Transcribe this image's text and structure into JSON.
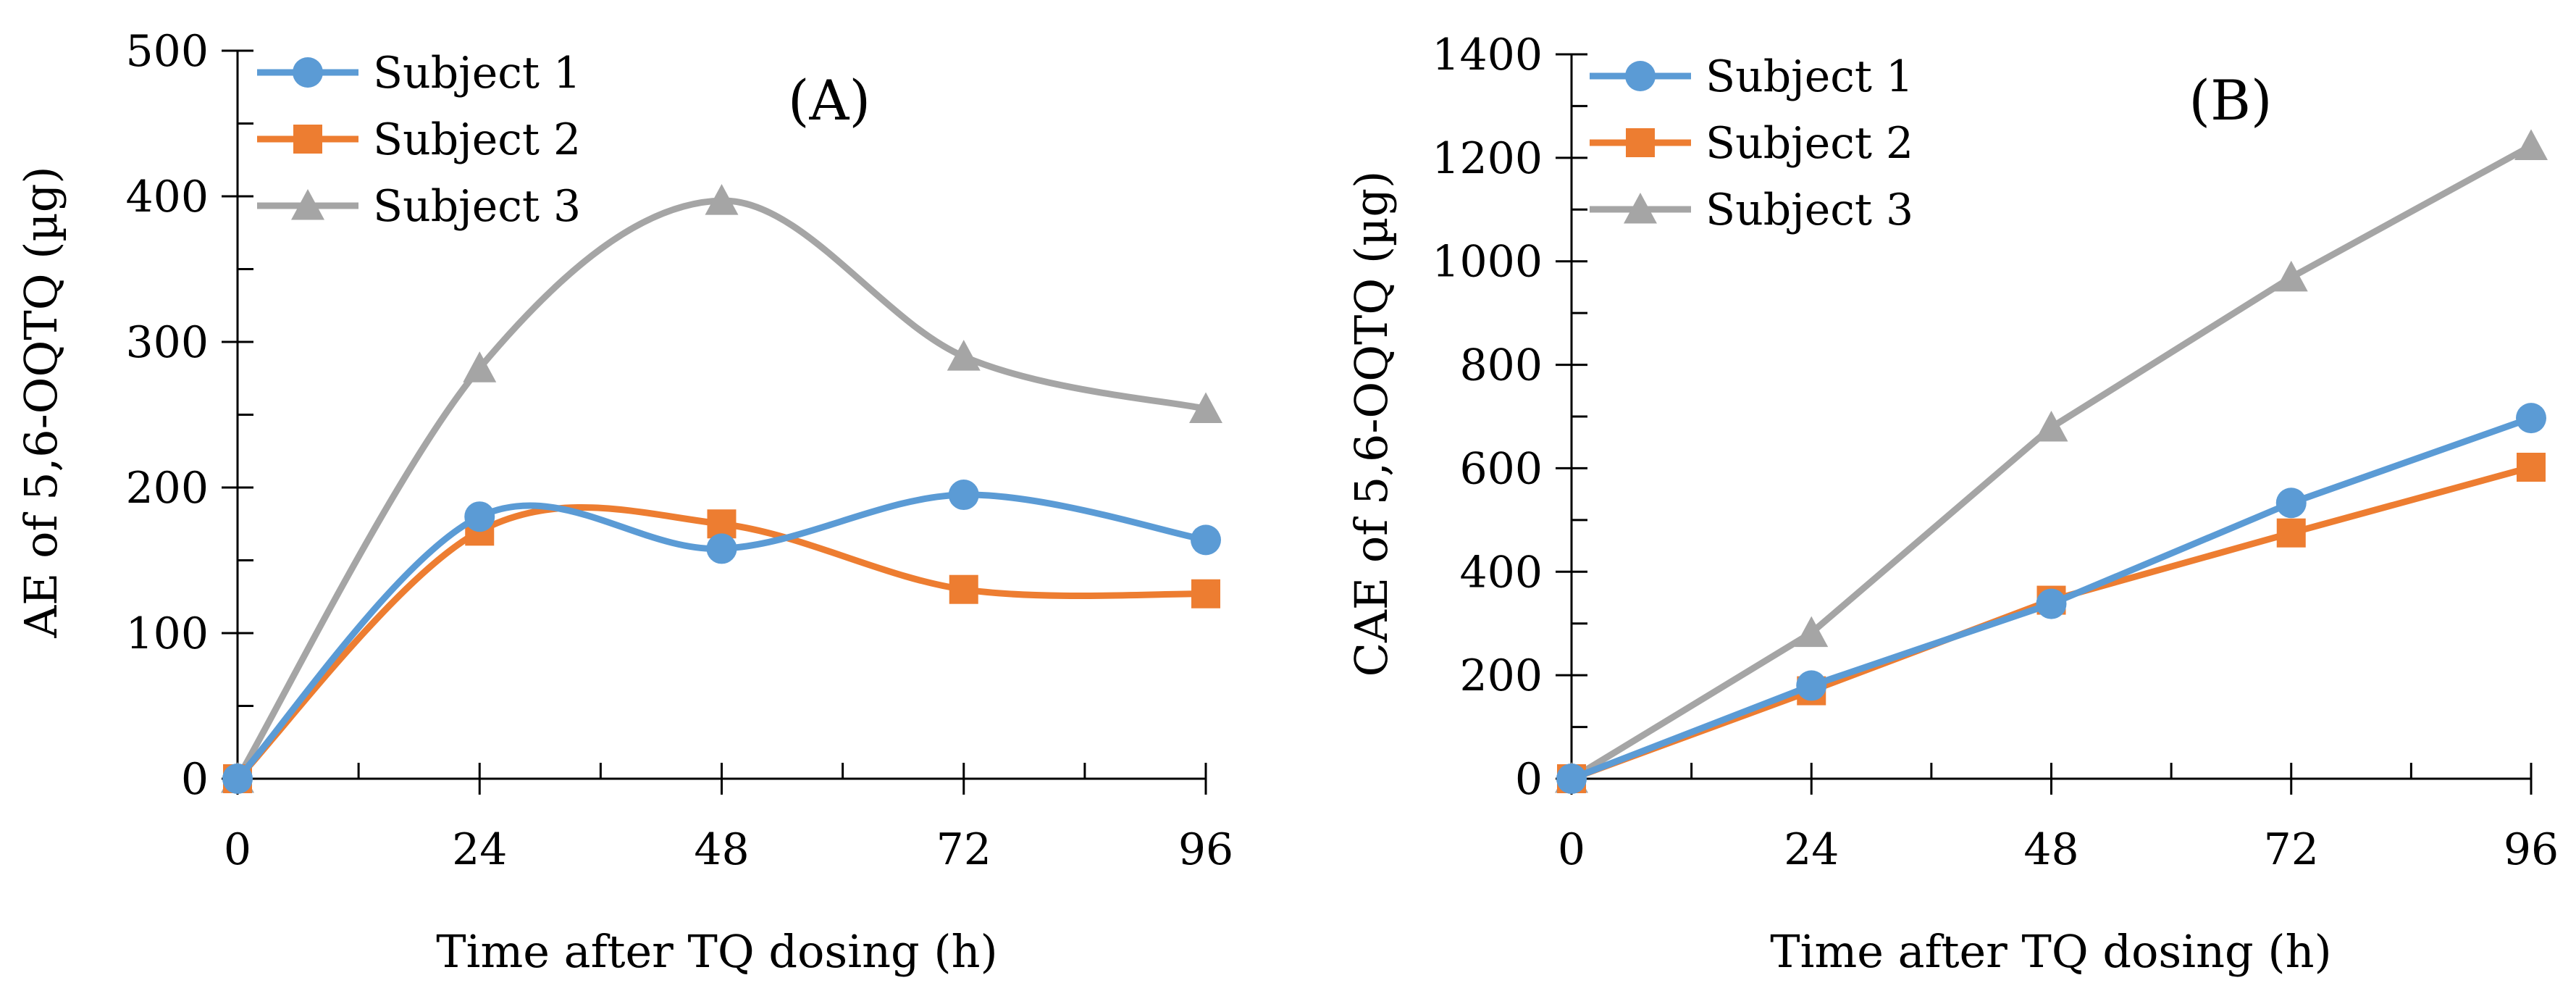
{
  "chart_data": [
    {
      "type": "line",
      "panel_label": "(A)",
      "title": "(A)",
      "xlabel": "Time after TQ dosing (h)",
      "ylabel": "AE of 5,6-OQTQ (µg)",
      "x": [
        0,
        24,
        48,
        72,
        96
      ],
      "xticks": [
        "0",
        "24",
        "48",
        "72",
        "96"
      ],
      "xlim": [
        0,
        96
      ],
      "ylim": [
        0,
        500
      ],
      "yticks": [
        "0",
        "100",
        "200",
        "300",
        "400",
        "500"
      ],
      "smooth": true,
      "grid": false,
      "legend_position": "top-left",
      "series": [
        {
          "name": "Subject 1",
          "color": "#5B9BD5",
          "marker": "circle",
          "values": [
            0,
            180,
            158,
            195,
            164
          ]
        },
        {
          "name": "Subject 2",
          "color": "#ED7D31",
          "marker": "square",
          "values": [
            0,
            170,
            175,
            130,
            127
          ]
        },
        {
          "name": "Subject 3",
          "color": "#A5A5A5",
          "marker": "triangle",
          "values": [
            0,
            282,
            397,
            290,
            254
          ]
        }
      ]
    },
    {
      "type": "line",
      "panel_label": "(B)",
      "title": "(B)",
      "xlabel": "Time after TQ dosing (h)",
      "ylabel": "CAE of 5,6-OQTQ (µg)",
      "x": [
        0,
        24,
        48,
        72,
        96
      ],
      "xticks": [
        "0",
        "24",
        "48",
        "72",
        "96"
      ],
      "xlim": [
        0,
        96
      ],
      "ylim": [
        0,
        1400
      ],
      "yticks": [
        "0",
        "200",
        "400",
        "600",
        "800",
        "1000",
        "1200",
        "1400"
      ],
      "smooth": false,
      "grid": false,
      "legend_position": "top-left",
      "series": [
        {
          "name": "Subject 1",
          "color": "#5B9BD5",
          "marker": "circle",
          "values": [
            0,
            180,
            338,
            533,
            697
          ]
        },
        {
          "name": "Subject 2",
          "color": "#ED7D31",
          "marker": "square",
          "values": [
            0,
            170,
            345,
            475,
            602
          ]
        },
        {
          "name": "Subject 3",
          "color": "#A5A5A5",
          "marker": "triangle",
          "values": [
            0,
            282,
            679,
            969,
            1223
          ]
        }
      ]
    }
  ]
}
